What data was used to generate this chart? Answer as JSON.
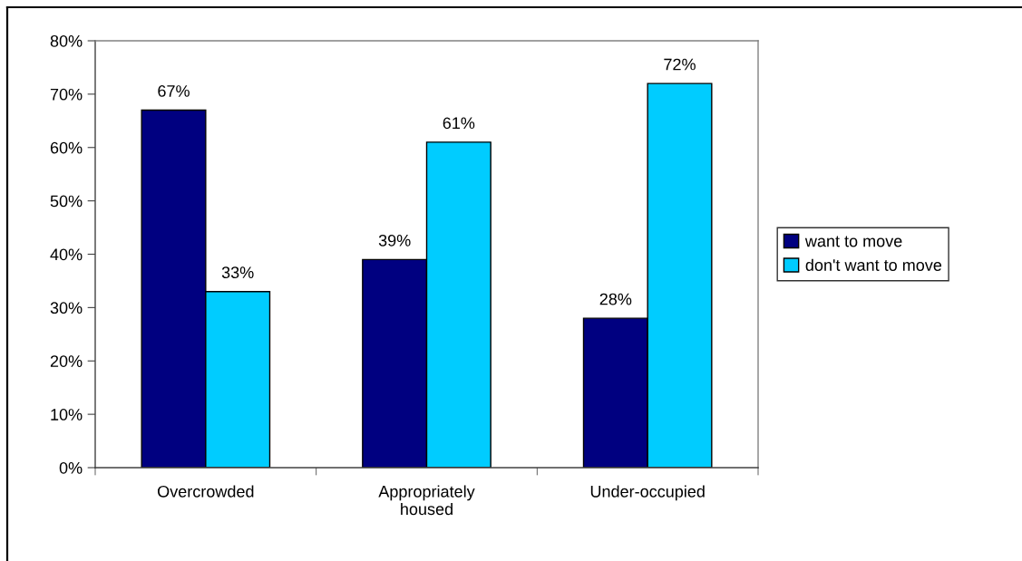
{
  "chart_data": {
    "type": "bar",
    "categories": [
      "Overcrowded",
      "Appropriately\nhoused",
      "Under-occupied"
    ],
    "series": [
      {
        "name": "want to move",
        "color": "#000080",
        "values": [
          67,
          39,
          28
        ],
        "value_labels": [
          "67%",
          "39%",
          "28%"
        ]
      },
      {
        "name": "don't want to move",
        "color": "#00ccff",
        "values": [
          33,
          61,
          72
        ],
        "value_labels": [
          "33%",
          "61%",
          "72%"
        ]
      }
    ],
    "ylim": [
      0,
      80
    ],
    "yticks": [
      {
        "value": 0,
        "label": "0%"
      },
      {
        "value": 10,
        "label": "10%"
      },
      {
        "value": 20,
        "label": "20%"
      },
      {
        "value": 30,
        "label": "30%"
      },
      {
        "value": 40,
        "label": "40%"
      },
      {
        "value": 50,
        "label": "50%"
      },
      {
        "value": 60,
        "label": "60%"
      },
      {
        "value": 70,
        "label": "70%"
      },
      {
        "value": 80,
        "label": "80%"
      }
    ],
    "grid": false,
    "legend": "right"
  }
}
